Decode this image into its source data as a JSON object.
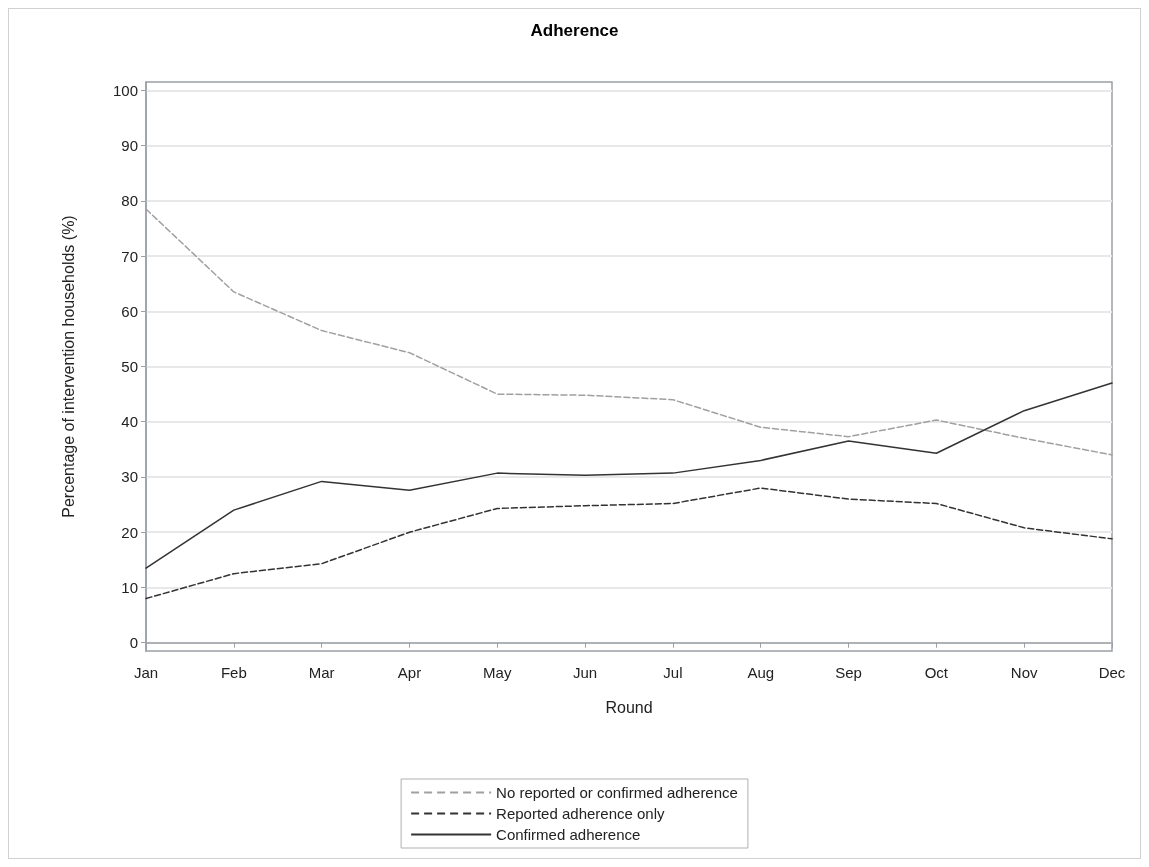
{
  "chart_data": {
    "type": "line",
    "title": "Adherence",
    "xlabel": "Round",
    "ylabel": "Percentage of intervention households (%)",
    "categories": [
      "Jan",
      "Feb",
      "Mar",
      "Apr",
      "May",
      "Jun",
      "Jul",
      "Aug",
      "Sep",
      "Oct",
      "Nov",
      "Dec"
    ],
    "series": [
      {
        "name": "No reported or confirmed adherence",
        "color": "#a0a0a0",
        "line_style": "dashed",
        "values": [
          78.5,
          63.5,
          56.5,
          52.5,
          45,
          44.8,
          44,
          39,
          37.3,
          40.3,
          37,
          34
        ]
      },
      {
        "name": "Reported adherence only",
        "color": "#333333",
        "line_style": "dashed",
        "values": [
          8,
          12.5,
          14.3,
          20,
          24.3,
          24.8,
          25.2,
          28,
          26,
          25.2,
          20.8,
          18.8
        ]
      },
      {
        "name": "Confirmed adherence",
        "color": "#333333",
        "line_style": "solid",
        "values": [
          13.5,
          24,
          29.2,
          27.6,
          30.7,
          30.3,
          30.7,
          33,
          36.5,
          34.3,
          42,
          47
        ]
      }
    ],
    "ylim": [
      -1.5,
      101.5
    ],
    "yticks": [
      0,
      10,
      20,
      30,
      40,
      50,
      60,
      70,
      80,
      90,
      100
    ],
    "grid": "y",
    "legend": "bottom",
    "marker": "none"
  }
}
